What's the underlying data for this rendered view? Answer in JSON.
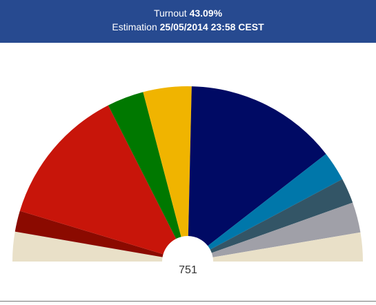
{
  "header": {
    "turnout_label": "Turnout",
    "turnout_value": "43.09%",
    "estimation_label": "Estimation",
    "estimation_value": "25/05/2014 23:58 CEST"
  },
  "chart_data": {
    "type": "pie",
    "subtype": "parliament-hemicycle",
    "total_label": "751",
    "total": 751,
    "segments": [
      {
        "value": 41,
        "color": "#e9e0c8"
      },
      {
        "value": 29,
        "color": "#8b0a00"
      },
      {
        "value": 193,
        "color": "#c8150a"
      },
      {
        "value": 51,
        "color": "#007800"
      },
      {
        "value": 67,
        "color": "#f0b400"
      },
      {
        "value": 212,
        "color": "#000a64"
      },
      {
        "value": 41,
        "color": "#0077aa"
      },
      {
        "value": 35,
        "color": "#335566"
      },
      {
        "value": 42,
        "color": "#a0a0a8"
      },
      {
        "value": 40,
        "color": "#e9e0c8"
      }
    ]
  }
}
